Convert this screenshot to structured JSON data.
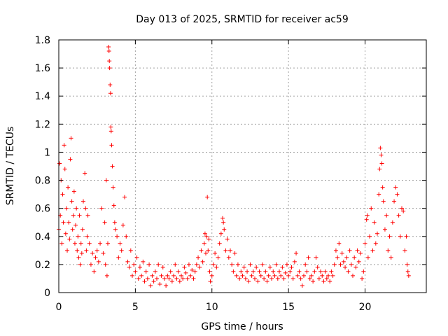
{
  "chart_data": {
    "type": "scatter",
    "title": "Day 013 of 2025, SRMTID for receiver ac59",
    "xlabel": "GPS time / hours",
    "ylabel": "SRMTID / TECUs",
    "xlim": [
      0,
      24
    ],
    "ylim": [
      0,
      1.8
    ],
    "xticks": [
      0,
      5,
      10,
      15,
      20
    ],
    "yticks": [
      0,
      0.2,
      0.4,
      0.6,
      0.8,
      1,
      1.2,
      1.4,
      1.6,
      1.8
    ],
    "ytick_labels": [
      "0",
      "0.2",
      "0.4",
      "0.6",
      "0.8",
      "1",
      "1.2",
      "1.4",
      "1.6",
      "1.8"
    ],
    "grid": true,
    "marker": "+",
    "color": "#ff0000",
    "series": [
      {
        "name": "SRMTID",
        "points": [
          [
            0.0,
            0.45
          ],
          [
            0.05,
            0.92
          ],
          [
            0.1,
            0.55
          ],
          [
            0.15,
            0.8
          ],
          [
            0.2,
            0.35
          ],
          [
            0.25,
            0.7
          ],
          [
            0.3,
            0.5
          ],
          [
            0.35,
            1.05
          ],
          [
            0.4,
            0.88
          ],
          [
            0.45,
            0.42
          ],
          [
            0.5,
            0.6
          ],
          [
            0.55,
            0.3
          ],
          [
            0.6,
            0.75
          ],
          [
            0.65,
            0.5
          ],
          [
            0.7,
            0.38
          ],
          [
            0.75,
            0.95
          ],
          [
            0.8,
            1.1
          ],
          [
            0.85,
            0.65
          ],
          [
            0.9,
            0.45
          ],
          [
            0.95,
            0.55
          ],
          [
            1.0,
            0.72
          ],
          [
            1.05,
            0.35
          ],
          [
            1.1,
            0.48
          ],
          [
            1.15,
            0.6
          ],
          [
            1.2,
            0.3
          ],
          [
            1.25,
            0.4
          ],
          [
            1.3,
            0.25
          ],
          [
            1.35,
            0.55
          ],
          [
            1.4,
            0.2
          ],
          [
            1.45,
            0.35
          ],
          [
            1.5,
            0.28
          ],
          [
            1.55,
            0.45
          ],
          [
            1.6,
            0.65
          ],
          [
            1.7,
            0.85
          ],
          [
            1.75,
            0.6
          ],
          [
            1.8,
            0.3
          ],
          [
            1.85,
            0.4
          ],
          [
            1.9,
            0.55
          ],
          [
            2.0,
            0.35
          ],
          [
            2.1,
            0.2
          ],
          [
            2.2,
            0.28
          ],
          [
            2.3,
            0.15
          ],
          [
            2.4,
            0.25
          ],
          [
            2.5,
            0.3
          ],
          [
            2.6,
            0.22
          ],
          [
            2.7,
            0.35
          ],
          [
            2.8,
            0.6
          ],
          [
            2.9,
            0.28
          ],
          [
            3.0,
            0.5
          ],
          [
            3.05,
            0.2
          ],
          [
            3.1,
            0.8
          ],
          [
            3.15,
            0.12
          ],
          [
            3.2,
            0.35
          ],
          [
            3.25,
            1.75
          ],
          [
            3.28,
            1.72
          ],
          [
            3.3,
            1.65
          ],
          [
            3.32,
            1.6
          ],
          [
            3.35,
            1.48
          ],
          [
            3.38,
            1.42
          ],
          [
            3.4,
            1.18
          ],
          [
            3.42,
            1.15
          ],
          [
            3.45,
            1.05
          ],
          [
            3.5,
            0.9
          ],
          [
            3.55,
            0.75
          ],
          [
            3.6,
            0.62
          ],
          [
            3.65,
            0.5
          ],
          [
            3.7,
            0.45
          ],
          [
            3.8,
            0.4
          ],
          [
            3.9,
            0.25
          ],
          [
            4.0,
            0.35
          ],
          [
            4.1,
            0.3
          ],
          [
            4.2,
            0.48
          ],
          [
            4.3,
            0.68
          ],
          [
            4.4,
            0.4
          ],
          [
            4.5,
            0.22
          ],
          [
            4.6,
            0.18
          ],
          [
            4.7,
            0.3
          ],
          [
            4.8,
            0.12
          ],
          [
            4.9,
            0.2
          ],
          [
            5.0,
            0.15
          ],
          [
            5.1,
            0.25
          ],
          [
            5.2,
            0.1
          ],
          [
            5.3,
            0.18
          ],
          [
            5.4,
            0.12
          ],
          [
            5.5,
            0.22
          ],
          [
            5.6,
            0.08
          ],
          [
            5.7,
            0.15
          ],
          [
            5.8,
            0.1
          ],
          [
            5.9,
            0.2
          ],
          [
            6.0,
            0.05
          ],
          [
            6.1,
            0.12
          ],
          [
            6.2,
            0.08
          ],
          [
            6.3,
            0.15
          ],
          [
            6.4,
            0.1
          ],
          [
            6.5,
            0.2
          ],
          [
            6.6,
            0.06
          ],
          [
            6.7,
            0.12
          ],
          [
            6.8,
            0.18
          ],
          [
            6.9,
            0.1
          ],
          [
            7.0,
            0.05
          ],
          [
            7.1,
            0.12
          ],
          [
            7.2,
            0.1
          ],
          [
            7.3,
            0.15
          ],
          [
            7.4,
            0.08
          ],
          [
            7.5,
            0.12
          ],
          [
            7.6,
            0.2
          ],
          [
            7.7,
            0.1
          ],
          [
            7.8,
            0.15
          ],
          [
            7.9,
            0.08
          ],
          [
            8.0,
            0.12
          ],
          [
            8.1,
            0.1
          ],
          [
            8.2,
            0.18
          ],
          [
            8.3,
            0.14
          ],
          [
            8.4,
            0.1
          ],
          [
            8.5,
            0.2
          ],
          [
            8.6,
            0.12
          ],
          [
            8.7,
            0.16
          ],
          [
            8.8,
            0.1
          ],
          [
            8.9,
            0.15
          ],
          [
            9.0,
            0.2
          ],
          [
            9.1,
            0.25
          ],
          [
            9.2,
            0.18
          ],
          [
            9.3,
            0.3
          ],
          [
            9.4,
            0.22
          ],
          [
            9.5,
            0.35
          ],
          [
            9.55,
            0.42
          ],
          [
            9.6,
            0.28
          ],
          [
            9.65,
            0.4
          ],
          [
            9.7,
            0.68
          ],
          [
            9.75,
            0.3
          ],
          [
            9.8,
            0.38
          ],
          [
            9.85,
            0.15
          ],
          [
            9.9,
            0.08
          ],
          [
            10.0,
            0.12
          ],
          [
            10.1,
            0.2
          ],
          [
            10.2,
            0.28
          ],
          [
            10.3,
            0.18
          ],
          [
            10.4,
            0.25
          ],
          [
            10.5,
            0.35
          ],
          [
            10.6,
            0.42
          ],
          [
            10.7,
            0.53
          ],
          [
            10.75,
            0.5
          ],
          [
            10.8,
            0.45
          ],
          [
            10.9,
            0.3
          ],
          [
            11.0,
            0.38
          ],
          [
            11.1,
            0.25
          ],
          [
            11.2,
            0.3
          ],
          [
            11.3,
            0.2
          ],
          [
            11.4,
            0.15
          ],
          [
            11.5,
            0.28
          ],
          [
            11.6,
            0.12
          ],
          [
            11.7,
            0.2
          ],
          [
            11.8,
            0.1
          ],
          [
            11.9,
            0.15
          ],
          [
            12.0,
            0.12
          ],
          [
            12.1,
            0.18
          ],
          [
            12.2,
            0.1
          ],
          [
            12.3,
            0.15
          ],
          [
            12.4,
            0.08
          ],
          [
            12.5,
            0.2
          ],
          [
            12.6,
            0.12
          ],
          [
            12.7,
            0.15
          ],
          [
            12.8,
            0.1
          ],
          [
            12.9,
            0.18
          ],
          [
            13.0,
            0.08
          ],
          [
            13.1,
            0.15
          ],
          [
            13.2,
            0.12
          ],
          [
            13.3,
            0.2
          ],
          [
            13.4,
            0.1
          ],
          [
            13.5,
            0.15
          ],
          [
            13.6,
            0.08
          ],
          [
            13.7,
            0.12
          ],
          [
            13.8,
            0.18
          ],
          [
            13.9,
            0.1
          ],
          [
            14.0,
            0.15
          ],
          [
            14.1,
            0.12
          ],
          [
            14.2,
            0.2
          ],
          [
            14.3,
            0.1
          ],
          [
            14.4,
            0.15
          ],
          [
            14.5,
            0.12
          ],
          [
            14.6,
            0.18
          ],
          [
            14.7,
            0.1
          ],
          [
            14.8,
            0.14
          ],
          [
            14.9,
            0.2
          ],
          [
            15.0,
            0.12
          ],
          [
            15.1,
            0.15
          ],
          [
            15.2,
            0.18
          ],
          [
            15.3,
            0.1
          ],
          [
            15.4,
            0.22
          ],
          [
            15.5,
            0.28
          ],
          [
            15.6,
            0.12
          ],
          [
            15.7,
            0.15
          ],
          [
            15.8,
            0.1
          ],
          [
            15.9,
            0.05
          ],
          [
            16.0,
            0.12
          ],
          [
            16.1,
            0.2
          ],
          [
            16.2,
            0.15
          ],
          [
            16.3,
            0.25
          ],
          [
            16.4,
            0.1
          ],
          [
            16.5,
            0.12
          ],
          [
            16.6,
            0.08
          ],
          [
            16.7,
            0.15
          ],
          [
            16.8,
            0.25
          ],
          [
            16.9,
            0.18
          ],
          [
            17.0,
            0.1
          ],
          [
            17.1,
            0.15
          ],
          [
            17.2,
            0.12
          ],
          [
            17.3,
            0.08
          ],
          [
            17.4,
            0.15
          ],
          [
            17.5,
            0.1
          ],
          [
            17.6,
            0.12
          ],
          [
            17.7,
            0.08
          ],
          [
            17.8,
            0.15
          ],
          [
            17.9,
            0.12
          ],
          [
            18.0,
            0.2
          ],
          [
            18.1,
            0.3
          ],
          [
            18.2,
            0.25
          ],
          [
            18.3,
            0.35
          ],
          [
            18.4,
            0.2
          ],
          [
            18.5,
            0.28
          ],
          [
            18.6,
            0.22
          ],
          [
            18.7,
            0.18
          ],
          [
            18.8,
            0.25
          ],
          [
            18.9,
            0.15
          ],
          [
            19.0,
            0.3
          ],
          [
            19.1,
            0.2
          ],
          [
            19.2,
            0.12
          ],
          [
            19.3,
            0.25
          ],
          [
            19.4,
            0.18
          ],
          [
            19.5,
            0.3
          ],
          [
            19.6,
            0.22
          ],
          [
            19.7,
            0.28
          ],
          [
            19.8,
            0.1
          ],
          [
            19.9,
            0.15
          ],
          [
            20.0,
            0.35
          ],
          [
            20.1,
            0.52
          ],
          [
            20.15,
            0.55
          ],
          [
            20.2,
            0.25
          ],
          [
            20.3,
            0.4
          ],
          [
            20.4,
            0.6
          ],
          [
            20.5,
            0.3
          ],
          [
            20.6,
            0.5
          ],
          [
            20.7,
            0.35
          ],
          [
            20.8,
            0.42
          ],
          [
            20.9,
            0.7
          ],
          [
            20.95,
            0.88
          ],
          [
            21.0,
            1.03
          ],
          [
            21.05,
            0.98
          ],
          [
            21.1,
            0.92
          ],
          [
            21.15,
            0.75
          ],
          [
            21.2,
            0.65
          ],
          [
            21.3,
            0.45
          ],
          [
            21.4,
            0.55
          ],
          [
            21.5,
            0.3
          ],
          [
            21.6,
            0.4
          ],
          [
            21.7,
            0.25
          ],
          [
            21.8,
            0.5
          ],
          [
            21.9,
            0.65
          ],
          [
            22.0,
            0.75
          ],
          [
            22.1,
            0.7
          ],
          [
            22.2,
            0.55
          ],
          [
            22.3,
            0.4
          ],
          [
            22.4,
            0.6
          ],
          [
            22.5,
            0.58
          ],
          [
            22.6,
            0.3
          ],
          [
            22.7,
            0.4
          ],
          [
            22.75,
            0.2
          ],
          [
            22.8,
            0.15
          ],
          [
            22.85,
            0.12
          ]
        ]
      }
    ]
  }
}
